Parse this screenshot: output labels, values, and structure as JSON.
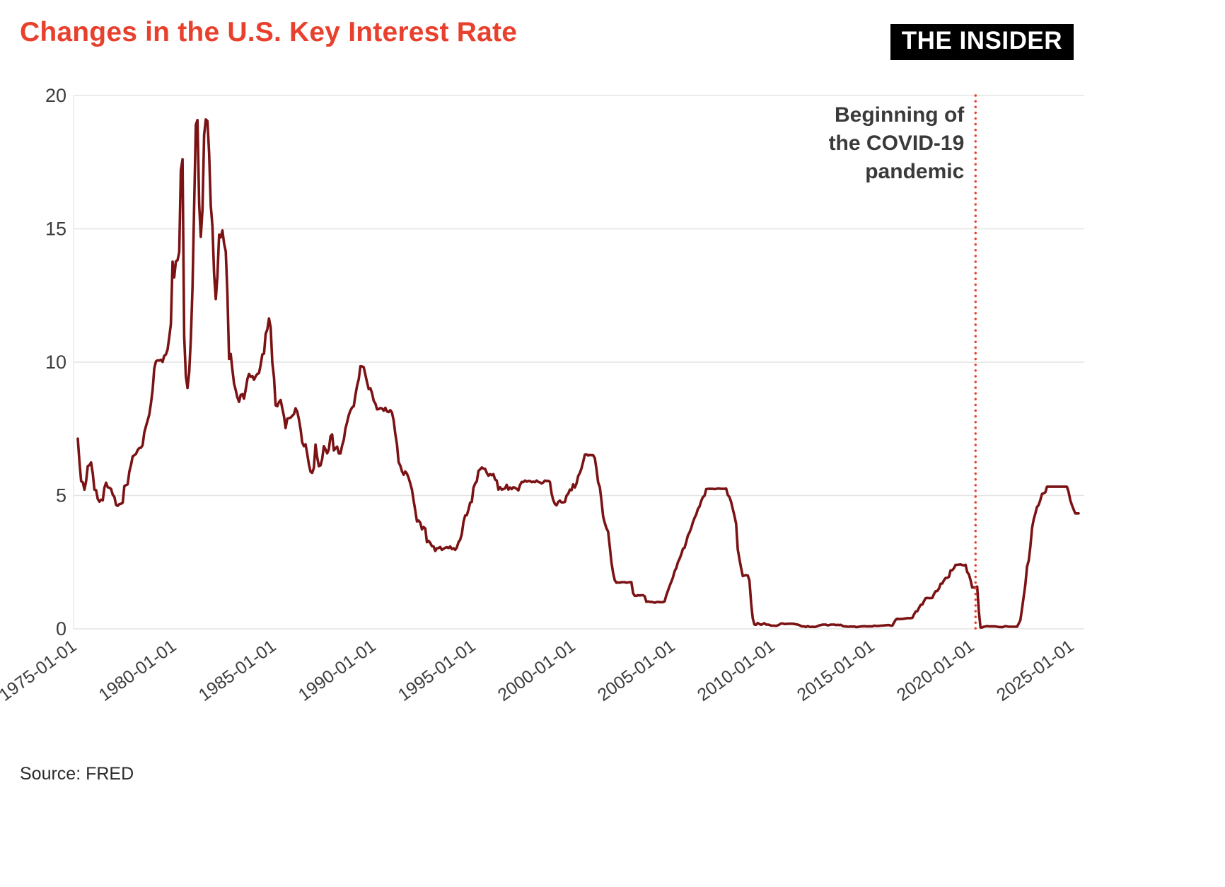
{
  "header": {
    "title": "Changes in the U.S. Key Interest Rate",
    "logo": "THE INSIDER"
  },
  "footer": {
    "source": "Source: FRED"
  },
  "colors": {
    "title": "#e8402c",
    "line": "#7b1214",
    "vline": "#e8402c",
    "grid": "#e4e4e4",
    "axis_text": "#3d3d3d",
    "annotation_text": "#3a3a3a"
  },
  "chart_data": {
    "type": "line",
    "title": "Changes in the U.S. Key Interest Rate",
    "xlabel": "",
    "ylabel": "",
    "ylim": [
      0,
      20
    ],
    "y_ticks": [
      0,
      5,
      10,
      15,
      20
    ],
    "x_ticks": [
      "1975-01-01",
      "1980-01-01",
      "1985-01-01",
      "1990-01-01",
      "1995-01-01",
      "2000-01-01",
      "2005-01-01",
      "2010-01-01",
      "2015-01-01",
      "2020-01-01",
      "2025-01-01"
    ],
    "grid": "horizontal",
    "legend": "none",
    "start": "1975-01",
    "frequency": "monthly",
    "annotation": {
      "x": "2020-01-01",
      "lines": [
        "Beginning of",
        "the COVID-19",
        "pandemic"
      ]
    },
    "series": [
      {
        "name": "key_interest_rate",
        "values": [
          7.13,
          6.24,
          5.54,
          5.49,
          5.22,
          5.55,
          6.1,
          6.14,
          6.24,
          5.82,
          5.22,
          5.2,
          4.87,
          4.77,
          4.84,
          4.82,
          5.29,
          5.48,
          5.31,
          5.29,
          5.25,
          5.03,
          4.95,
          4.65,
          4.61,
          4.68,
          4.69,
          4.73,
          5.35,
          5.39,
          5.42,
          5.9,
          6.14,
          6.47,
          6.51,
          6.56,
          6.7,
          6.78,
          6.79,
          6.89,
          7.36,
          7.6,
          7.81,
          8.04,
          8.45,
          8.96,
          9.76,
          10.03,
          10.07,
          10.06,
          10.09,
          10.01,
          10.24,
          10.29,
          10.47,
          10.94,
          11.43,
          13.77,
          13.18,
          13.78,
          13.82,
          14.13,
          17.19,
          17.61,
          10.98,
          9.47,
          9.03,
          9.61,
          10.87,
          12.81,
          15.85,
          18.9,
          19.08,
          15.93,
          14.7,
          15.72,
          18.52,
          19.1,
          19.04,
          17.82,
          15.87,
          15.08,
          13.31,
          12.37,
          13.22,
          14.78,
          14.68,
          14.94,
          14.45,
          14.15,
          12.59,
          10.12,
          10.31,
          9.71,
          9.2,
          8.95,
          8.68,
          8.51,
          8.77,
          8.8,
          8.63,
          8.98,
          9.37,
          9.56,
          9.45,
          9.48,
          9.34,
          9.47,
          9.56,
          9.59,
          9.91,
          10.29,
          10.32,
          11.06,
          11.23,
          11.64,
          11.3,
          9.99,
          9.43,
          8.38,
          8.35,
          8.5,
          8.58,
          8.27,
          7.97,
          7.53,
          7.88,
          7.9,
          7.92,
          7.99,
          8.05,
          8.27,
          8.14,
          7.86,
          7.48,
          6.99,
          6.85,
          6.92,
          6.56,
          6.17,
          5.89,
          5.85,
          6.04,
          6.91,
          6.43,
          6.1,
          6.13,
          6.37,
          6.85,
          6.73,
          6.58,
          6.73,
          7.22,
          7.29,
          6.69,
          6.77,
          6.83,
          6.58,
          6.58,
          6.87,
          7.09,
          7.51,
          7.75,
          8.01,
          8.19,
          8.3,
          8.35,
          8.76,
          9.12,
          9.36,
          9.85,
          9.84,
          9.81,
          9.53,
          9.24,
          8.99,
          9.02,
          8.84,
          8.55,
          8.45,
          8.23,
          8.24,
          8.28,
          8.26,
          8.18,
          8.29,
          8.15,
          8.13,
          8.2,
          8.11,
          7.81,
          7.31,
          6.91,
          6.25,
          6.12,
          5.91,
          5.78,
          5.9,
          5.82,
          5.66,
          5.45,
          5.21,
          4.81,
          4.43,
          4.03,
          4.06,
          3.98,
          3.73,
          3.82,
          3.76,
          3.25,
          3.3,
          3.22,
          3.1,
          3.09,
          2.92,
          3.02,
          3.03,
          3.07,
          2.96,
          3.0,
          3.04,
          3.06,
          3.03,
          3.09,
          2.99,
          3.02,
          2.96,
          3.05,
          3.25,
          3.34,
          3.56,
          4.01,
          4.25,
          4.26,
          4.47,
          4.73,
          4.76,
          5.29,
          5.45,
          5.53,
          5.92,
          5.98,
          6.05,
          6.01,
          6.0,
          5.85,
          5.74,
          5.8,
          5.76,
          5.8,
          5.6,
          5.56,
          5.22,
          5.31,
          5.22,
          5.24,
          5.27,
          5.4,
          5.22,
          5.3,
          5.24,
          5.31,
          5.29,
          5.25,
          5.19,
          5.39,
          5.51,
          5.5,
          5.56,
          5.52,
          5.54,
          5.54,
          5.5,
          5.52,
          5.5,
          5.56,
          5.51,
          5.49,
          5.45,
          5.49,
          5.56,
          5.54,
          5.55,
          5.51,
          5.07,
          4.83,
          4.68,
          4.63,
          4.76,
          4.81,
          4.74,
          4.74,
          4.76,
          4.99,
          5.07,
          5.22,
          5.2,
          5.42,
          5.3,
          5.45,
          5.73,
          5.85,
          6.02,
          6.27,
          6.53,
          6.54,
          6.5,
          6.52,
          6.51,
          6.51,
          6.4,
          5.98,
          5.49,
          5.31,
          4.8,
          4.21,
          3.97,
          3.77,
          3.65,
          3.07,
          2.49,
          2.09,
          1.82,
          1.73,
          1.74,
          1.73,
          1.75,
          1.75,
          1.75,
          1.73,
          1.74,
          1.75,
          1.75,
          1.34,
          1.24,
          1.24,
          1.26,
          1.25,
          1.26,
          1.26,
          1.22,
          1.01,
          1.03,
          1.01,
          1.01,
          1.0,
          0.98,
          1.0,
          1.01,
          1.0,
          1.0,
          1.0,
          1.03,
          1.26,
          1.43,
          1.61,
          1.76,
          1.93,
          2.16,
          2.28,
          2.5,
          2.63,
          2.79,
          3.0,
          3.04,
          3.26,
          3.5,
          3.62,
          3.78,
          4.0,
          4.16,
          4.29,
          4.49,
          4.59,
          4.79,
          4.94,
          4.99,
          5.24,
          5.25,
          5.25,
          5.25,
          5.25,
          5.24,
          5.25,
          5.26,
          5.26,
          5.25,
          5.25,
          5.25,
          5.26,
          5.02,
          4.94,
          4.76,
          4.49,
          4.24,
          3.94,
          2.98,
          2.61,
          2.28,
          1.98,
          2.0,
          2.01,
          2.0,
          1.81,
          0.97,
          0.39,
          0.16,
          0.15,
          0.22,
          0.18,
          0.15,
          0.18,
          0.21,
          0.16,
          0.16,
          0.15,
          0.12,
          0.12,
          0.12,
          0.11,
          0.13,
          0.16,
          0.2,
          0.2,
          0.18,
          0.18,
          0.19,
          0.19,
          0.19,
          0.19,
          0.18,
          0.17,
          0.16,
          0.14,
          0.1,
          0.09,
          0.09,
          0.07,
          0.1,
          0.08,
          0.07,
          0.08,
          0.07,
          0.08,
          0.1,
          0.13,
          0.14,
          0.16,
          0.16,
          0.16,
          0.13,
          0.14,
          0.16,
          0.16,
          0.16,
          0.14,
          0.15,
          0.14,
          0.15,
          0.11,
          0.09,
          0.09,
          0.08,
          0.08,
          0.09,
          0.08,
          0.09,
          0.07,
          0.07,
          0.08,
          0.09,
          0.09,
          0.1,
          0.09,
          0.09,
          0.09,
          0.09,
          0.09,
          0.12,
          0.11,
          0.11,
          0.11,
          0.12,
          0.12,
          0.13,
          0.13,
          0.14,
          0.14,
          0.12,
          0.12,
          0.24,
          0.34,
          0.38,
          0.36,
          0.37,
          0.37,
          0.38,
          0.39,
          0.4,
          0.4,
          0.4,
          0.41,
          0.54,
          0.65,
          0.66,
          0.79,
          0.9,
          0.91,
          1.04,
          1.15,
          1.16,
          1.15,
          1.15,
          1.16,
          1.3,
          1.41,
          1.42,
          1.51,
          1.69,
          1.7,
          1.82,
          1.91,
          1.91,
          1.95,
          2.19,
          2.2,
          2.27,
          2.4,
          2.4,
          2.41,
          2.42,
          2.39,
          2.38,
          2.4,
          2.13,
          2.04,
          1.83,
          1.55,
          1.55,
          1.55,
          1.58,
          0.65,
          0.05,
          0.05,
          0.08,
          0.09,
          0.1,
          0.09,
          0.09,
          0.09,
          0.09,
          0.09,
          0.08,
          0.07,
          0.07,
          0.06,
          0.08,
          0.1,
          0.09,
          0.08,
          0.08,
          0.08,
          0.08,
          0.08,
          0.08,
          0.2,
          0.33,
          0.77,
          1.21,
          1.68,
          2.33,
          2.56,
          3.08,
          3.78,
          4.1,
          4.33,
          4.57,
          4.65,
          4.83,
          5.06,
          5.08,
          5.12,
          5.33,
          5.33,
          5.33,
          5.33,
          5.33,
          5.33,
          5.33,
          5.33,
          5.33,
          5.33,
          5.33,
          5.33,
          5.33,
          5.13,
          4.83,
          4.64,
          4.48,
          4.33,
          4.33,
          4.33
        ]
      }
    ]
  }
}
